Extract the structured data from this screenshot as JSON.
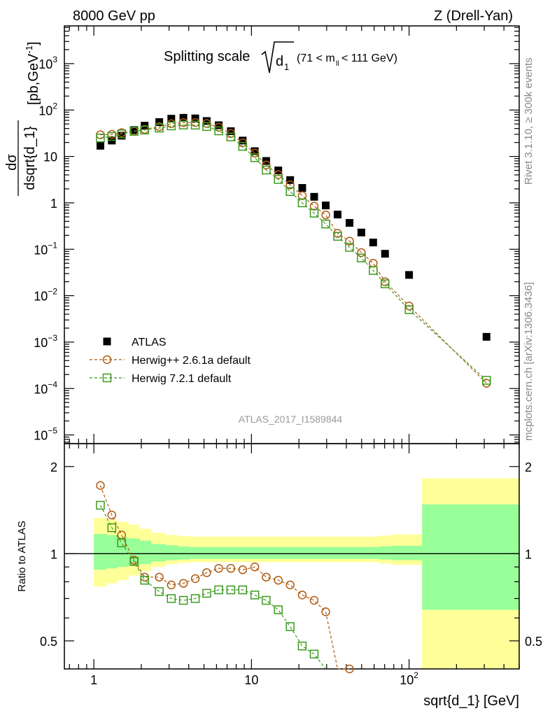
{
  "header": {
    "energy": "8000 GeV pp",
    "process": "Z (Drell-Yan)",
    "plot_title": "Splitting scale",
    "title_symbol": "d",
    "title_subscript": "1",
    "title_cut": "(71 < m",
    "title_cut_sub": "ll",
    "title_cut_end": " < 111 GeV)",
    "analysis_id": "ATLAS_2017_I1589844",
    "side_rivet": "Rivet 3.1.10, ≥ 300k events",
    "side_mcplots": "mcplots.cern.ch [arXiv:1306.3436]"
  },
  "axes": {
    "main_ylabel_num": "dσ",
    "main_ylabel_den": "dsqrt{d_1}",
    "main_ylabel_unit": "[pb,GeV",
    "main_ylabel_unit_exp": "-1",
    "main_ylabel_unit_end": "]",
    "ratio_ylabel": "Ratio to ATLAS",
    "xlabel": "sqrt{d_1} [GeV]",
    "x_ticks": [
      {
        "value": 1,
        "label": "1"
      },
      {
        "value": 10,
        "label": "10"
      },
      {
        "value": 100,
        "label": "10",
        "exp": "2"
      }
    ],
    "main_y_ticks": [
      {
        "value": 1e-05,
        "label": "10",
        "exp": "−5"
      },
      {
        "value": 0.0001,
        "label": "10",
        "exp": "−4"
      },
      {
        "value": 0.001,
        "label": "10",
        "exp": "−3"
      },
      {
        "value": 0.01,
        "label": "10",
        "exp": "−2"
      },
      {
        "value": 0.1,
        "label": "10",
        "exp": "−1"
      },
      {
        "value": 1,
        "label": "1"
      },
      {
        "value": 10,
        "label": "10"
      },
      {
        "value": 100,
        "label": "10",
        "exp": "2"
      },
      {
        "value": 1000,
        "label": "10",
        "exp": "3"
      }
    ],
    "ratio_y_ticks": [
      {
        "value": 0.5,
        "label": "0.5"
      },
      {
        "value": 1,
        "label": "1"
      },
      {
        "value": 2,
        "label": "2"
      }
    ]
  },
  "legend": [
    {
      "label": "ATLAS",
      "marker": "filled-square",
      "color": "#000000"
    },
    {
      "label": "Herwig++ 2.6.1a default",
      "marker": "open-circle",
      "color": "#b05a10"
    },
    {
      "label": "Herwig 7.2.1 default",
      "marker": "open-square",
      "color": "#3a9a1e"
    }
  ],
  "chart_data": {
    "type": "scatter",
    "x_scale": "log",
    "xlim": [
      0.65,
      500
    ],
    "main": {
      "y_scale": "log",
      "ylim": [
        6.5e-06,
        6500
      ],
      "series": [
        {
          "name": "ATLAS",
          "color": "#000000",
          "x": [
            1.1,
            1.3,
            1.5,
            1.8,
            2.1,
            2.6,
            3.1,
            3.7,
            4.4,
            5.2,
            6.2,
            7.4,
            8.8,
            10.5,
            12.4,
            14.8,
            17.6,
            21,
            25,
            29.6,
            35.2,
            41.9,
            49.8,
            59.2,
            70.4,
            100,
            310
          ],
          "y": [
            17,
            22,
            28,
            37,
            46,
            55,
            65,
            68,
            66,
            58,
            47,
            35,
            22,
            13,
            8,
            5,
            3.1,
            2.1,
            1.35,
            0.88,
            0.56,
            0.37,
            0.23,
            0.14,
            0.08,
            0.028,
            0.0013
          ]
        },
        {
          "name": "Herwig++ 2.6.1a default",
          "color": "#b05a10",
          "x": [
            1.1,
            1.3,
            1.5,
            1.8,
            2.1,
            2.6,
            3.1,
            3.7,
            4.4,
            5.2,
            6.2,
            7.4,
            8.8,
            10.5,
            12.4,
            14.8,
            17.6,
            21,
            25,
            29.6,
            35.2,
            41.9,
            49.8,
            59.2,
            70.4,
            100,
            310
          ],
          "y": [
            29.3,
            29.9,
            32.5,
            35.3,
            38.4,
            43.9,
            50.8,
            53.6,
            53.8,
            51.3,
            42.5,
            31.2,
            19.6,
            11.8,
            6.55,
            4.07,
            2.44,
            1.43,
            0.85,
            0.55,
            0.22,
            0.15,
            0.085,
            0.05,
            0.02,
            0.006,
            0.00013
          ]
        },
        {
          "name": "Herwig 7.2.1 default",
          "color": "#3a9a1e",
          "x": [
            1.1,
            1.3,
            1.5,
            1.8,
            2.1,
            2.6,
            3.1,
            3.7,
            4.4,
            5.2,
            6.2,
            7.4,
            8.8,
            10.5,
            12.4,
            14.8,
            17.6,
            21,
            25,
            29.6,
            35.2,
            41.9,
            49.8,
            59.2,
            70.4,
            100,
            310
          ],
          "y": [
            25,
            27,
            30.6,
            34.8,
            37.1,
            40.9,
            45.5,
            47.5,
            47.3,
            44.1,
            35.6,
            26.3,
            16.5,
            9.4,
            5.1,
            3.2,
            1.75,
            1.0,
            0.6,
            0.35,
            0.19,
            0.11,
            0.065,
            0.035,
            0.018,
            0.005,
            0.00015
          ]
        }
      ]
    },
    "ratio": {
      "y_scale": "log",
      "ylim": [
        0.4,
        2.4
      ],
      "reference": 1,
      "band_x_edges": [
        1.0,
        1.2,
        1.4,
        1.65,
        1.95,
        2.3,
        2.85,
        3.4,
        4.05,
        4.8,
        5.7,
        6.8,
        8.1,
        9.6,
        11.4,
        13.6,
        16.2,
        19.3,
        22.9,
        27.3,
        32.4,
        38.6,
        45.9,
        54.6,
        64.9,
        77.2,
        121,
        500
      ],
      "band_outer": [
        [
          0.77,
          1.33
        ],
        [
          0.79,
          1.31
        ],
        [
          0.81,
          1.29
        ],
        [
          0.84,
          1.26
        ],
        [
          0.87,
          1.22
        ],
        [
          0.9,
          1.18
        ],
        [
          0.92,
          1.16
        ],
        [
          0.93,
          1.15
        ],
        [
          0.935,
          1.145
        ],
        [
          0.935,
          1.145
        ],
        [
          0.935,
          1.145
        ],
        [
          0.935,
          1.145
        ],
        [
          0.935,
          1.145
        ],
        [
          0.935,
          1.145
        ],
        [
          0.935,
          1.145
        ],
        [
          0.935,
          1.145
        ],
        [
          0.935,
          1.145
        ],
        [
          0.935,
          1.145
        ],
        [
          0.935,
          1.145
        ],
        [
          0.935,
          1.145
        ],
        [
          0.935,
          1.145
        ],
        [
          0.935,
          1.145
        ],
        [
          0.935,
          1.145
        ],
        [
          0.935,
          1.145
        ],
        [
          0.925,
          1.155
        ],
        [
          0.915,
          1.165
        ],
        [
          0.35,
          1.82
        ]
      ],
      "band_inner": [
        [
          0.88,
          1.17
        ],
        [
          0.89,
          1.16
        ],
        [
          0.9,
          1.14
        ],
        [
          0.91,
          1.13
        ],
        [
          0.92,
          1.11
        ],
        [
          0.94,
          1.08
        ],
        [
          0.95,
          1.07
        ],
        [
          0.955,
          1.06
        ],
        [
          0.96,
          1.055
        ],
        [
          0.96,
          1.055
        ],
        [
          0.96,
          1.055
        ],
        [
          0.96,
          1.055
        ],
        [
          0.96,
          1.055
        ],
        [
          0.96,
          1.055
        ],
        [
          0.96,
          1.055
        ],
        [
          0.96,
          1.055
        ],
        [
          0.96,
          1.055
        ],
        [
          0.96,
          1.055
        ],
        [
          0.96,
          1.055
        ],
        [
          0.96,
          1.055
        ],
        [
          0.96,
          1.055
        ],
        [
          0.96,
          1.055
        ],
        [
          0.96,
          1.055
        ],
        [
          0.96,
          1.055
        ],
        [
          0.955,
          1.06
        ],
        [
          0.95,
          1.065
        ],
        [
          0.64,
          1.48
        ]
      ],
      "series": [
        {
          "name": "Herwig++ 2.6.1a default",
          "color": "#b05a10",
          "x": [
            1.1,
            1.3,
            1.5,
            1.8,
            2.1,
            2.6,
            3.1,
            3.7,
            4.4,
            5.2,
            6.2,
            7.4,
            8.8,
            10.5,
            12.4,
            14.8,
            17.6,
            21,
            25,
            29.6,
            35.2,
            41.9
          ],
          "y": [
            1.72,
            1.36,
            1.16,
            0.95,
            0.83,
            0.83,
            0.78,
            0.79,
            0.82,
            0.86,
            0.89,
            0.89,
            0.88,
            0.9,
            0.83,
            0.81,
            0.78,
            0.72,
            0.69,
            0.63,
            0.39,
            0.4
          ]
        },
        {
          "name": "Herwig 7.2.1 default",
          "color": "#3a9a1e",
          "x": [
            1.1,
            1.3,
            1.5,
            1.8,
            2.1,
            2.6,
            3.1,
            3.7,
            4.4,
            5.2,
            6.2,
            7.4,
            8.8,
            10.5,
            12.4,
            14.8,
            17.6,
            21,
            25,
            29.6
          ],
          "y": [
            1.47,
            1.23,
            1.09,
            0.94,
            0.81,
            0.74,
            0.7,
            0.69,
            0.7,
            0.73,
            0.75,
            0.75,
            0.75,
            0.72,
            0.69,
            0.64,
            0.56,
            0.48,
            0.45,
            0.38
          ]
        }
      ]
    }
  }
}
